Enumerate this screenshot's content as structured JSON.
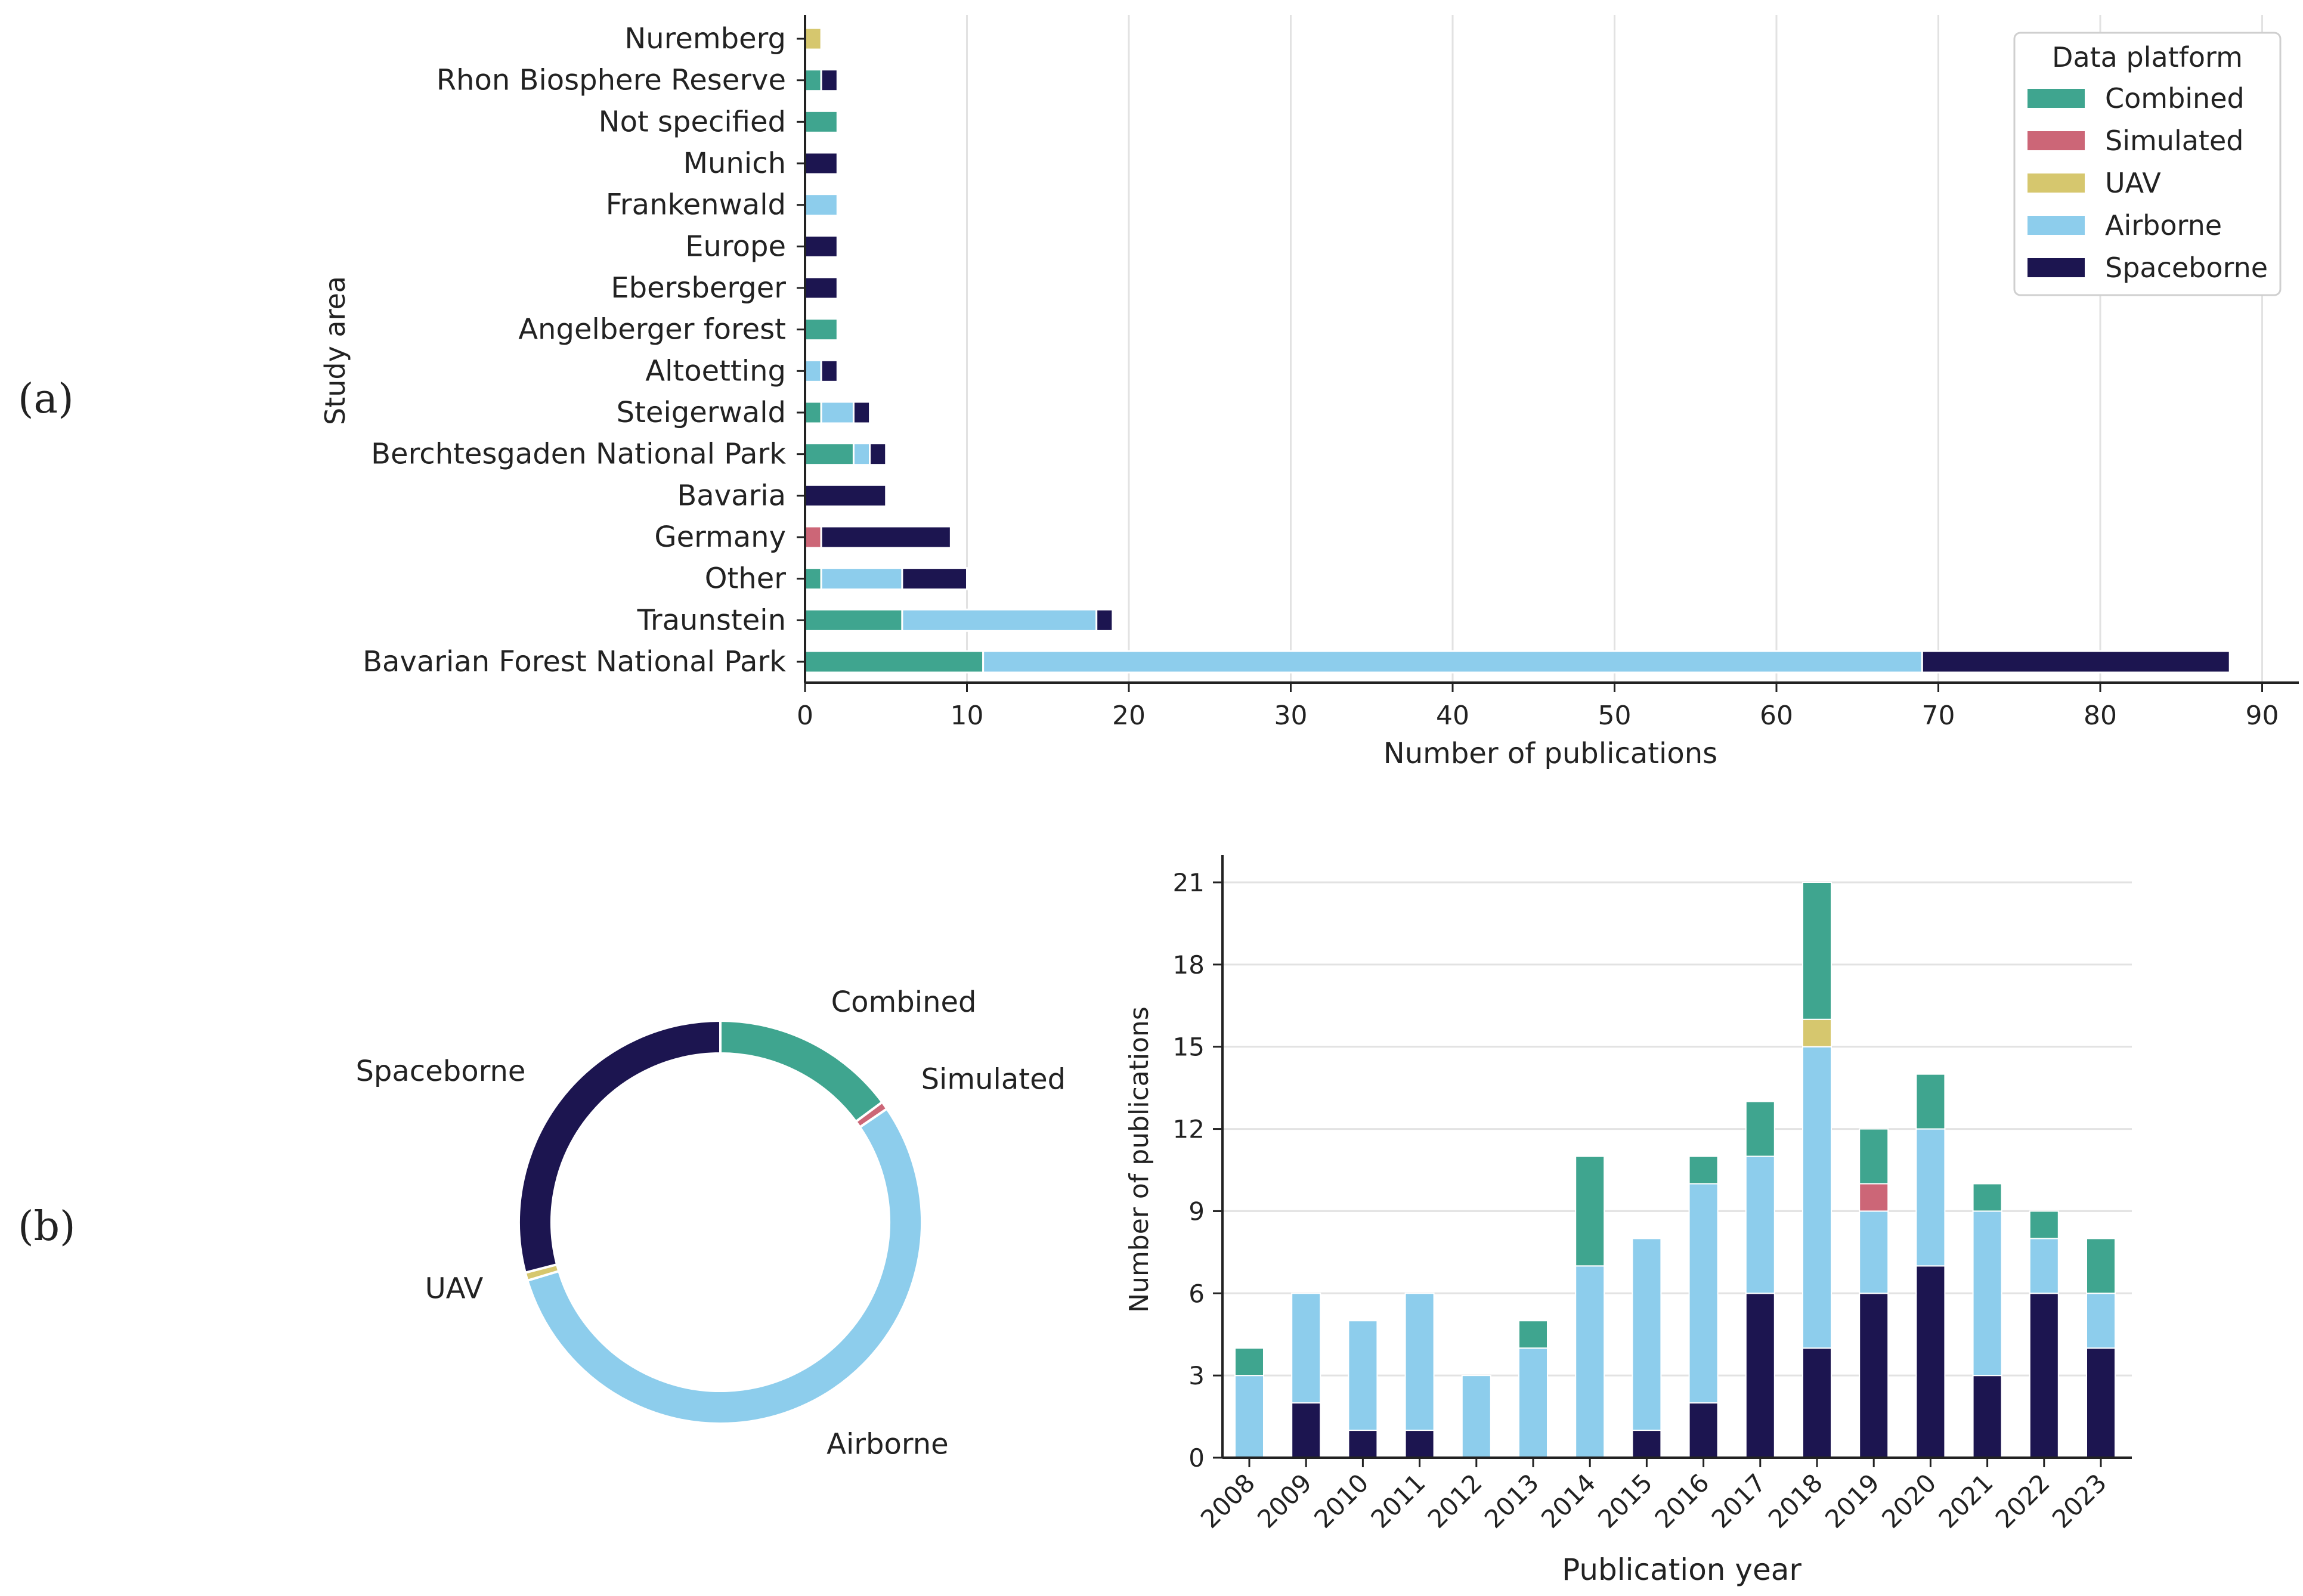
{
  "colors": {
    "Combined": "#3FA58F",
    "Simulated": "#CC6677",
    "UAV": "#D6C76E",
    "Airborne": "#8DCDEC",
    "Spaceborne": "#1C1550",
    "axis": "#222222",
    "grid": "#E2E2E2"
  },
  "panel_labels": [
    "(a)",
    "(b)"
  ],
  "chart_data": [
    {
      "type": "bar",
      "orientation": "horizontal",
      "stacked": true,
      "title": "",
      "xlabel": "Number of publications",
      "ylabel": "Study area",
      "xlim": [
        0,
        92
      ],
      "xticks": [
        0,
        10,
        20,
        30,
        40,
        50,
        60,
        70,
        80,
        90
      ],
      "grid": "vertical",
      "legend": {
        "title": "Data platform",
        "placement": "top-right",
        "entries": [
          "Combined",
          "Simulated",
          "UAV",
          "Airborne",
          "Spaceborne"
        ]
      },
      "categories": [
        "Nuremberg",
        "Rhon Biosphere Reserve",
        "Not specified",
        "Munich",
        "Frankenwald",
        "Europe",
        "Ebersberger",
        "Angelberger forest",
        "Altoetting",
        "Steigerwald",
        "Berchtesgaden National Park",
        "Bavaria",
        "Germany",
        "Other",
        "Traunstein",
        "Bavarian Forest National Park"
      ],
      "series": [
        {
          "name": "Combined",
          "values": [
            0,
            1,
            2,
            0,
            0,
            0,
            0,
            2,
            0,
            1,
            3,
            0,
            0,
            1,
            6,
            11
          ]
        },
        {
          "name": "Simulated",
          "values": [
            0,
            0,
            0,
            0,
            0,
            0,
            0,
            0,
            0,
            0,
            0,
            0,
            1,
            0,
            0,
            0
          ]
        },
        {
          "name": "UAV",
          "values": [
            1,
            0,
            0,
            0,
            0,
            0,
            0,
            0,
            0,
            0,
            0,
            0,
            0,
            0,
            0,
            0
          ]
        },
        {
          "name": "Airborne",
          "values": [
            0,
            0,
            0,
            0,
            2,
            0,
            0,
            0,
            1,
            2,
            1,
            0,
            0,
            5,
            12,
            58
          ]
        },
        {
          "name": "Spaceborne",
          "values": [
            0,
            1,
            0,
            2,
            0,
            2,
            2,
            0,
            1,
            1,
            1,
            5,
            8,
            4,
            1,
            19
          ]
        }
      ]
    },
    {
      "type": "pie",
      "donut": true,
      "title": "",
      "order": "counterclockwise from top",
      "labels": [
        "Combined",
        "Simulated",
        "Airborne",
        "UAV",
        "Spaceborne"
      ],
      "values": [
        23,
        1,
        85,
        1,
        45
      ]
    },
    {
      "type": "bar",
      "orientation": "vertical",
      "stacked": true,
      "title": "",
      "xlabel": "Publication year",
      "ylabel": "Number of publications",
      "ylim": [
        0,
        22
      ],
      "yticks": [
        0,
        3,
        6,
        9,
        12,
        15,
        18,
        21
      ],
      "grid": "horizontal",
      "categories": [
        "2008",
        "2009",
        "2010",
        "2011",
        "2012",
        "2013",
        "2014",
        "2015",
        "2016",
        "2017",
        "2018",
        "2019",
        "2020",
        "2021",
        "2022",
        "2023"
      ],
      "series": [
        {
          "name": "Spaceborne",
          "values": [
            0,
            2,
            1,
            1,
            0,
            0,
            0,
            1,
            2,
            6,
            4,
            6,
            7,
            3,
            6,
            4
          ]
        },
        {
          "name": "Airborne",
          "values": [
            3,
            4,
            4,
            5,
            3,
            4,
            7,
            7,
            8,
            5,
            11,
            3,
            5,
            6,
            2,
            2
          ]
        },
        {
          "name": "UAV",
          "values": [
            0,
            0,
            0,
            0,
            0,
            0,
            0,
            0,
            0,
            0,
            1,
            0,
            0,
            0,
            0,
            0
          ]
        },
        {
          "name": "Simulated",
          "values": [
            0,
            0,
            0,
            0,
            0,
            0,
            0,
            0,
            0,
            0,
            0,
            1,
            0,
            0,
            0,
            0
          ]
        },
        {
          "name": "Combined",
          "values": [
            1,
            0,
            0,
            0,
            0,
            1,
            4,
            0,
            1,
            2,
            5,
            2,
            2,
            1,
            1,
            2
          ]
        }
      ]
    }
  ]
}
